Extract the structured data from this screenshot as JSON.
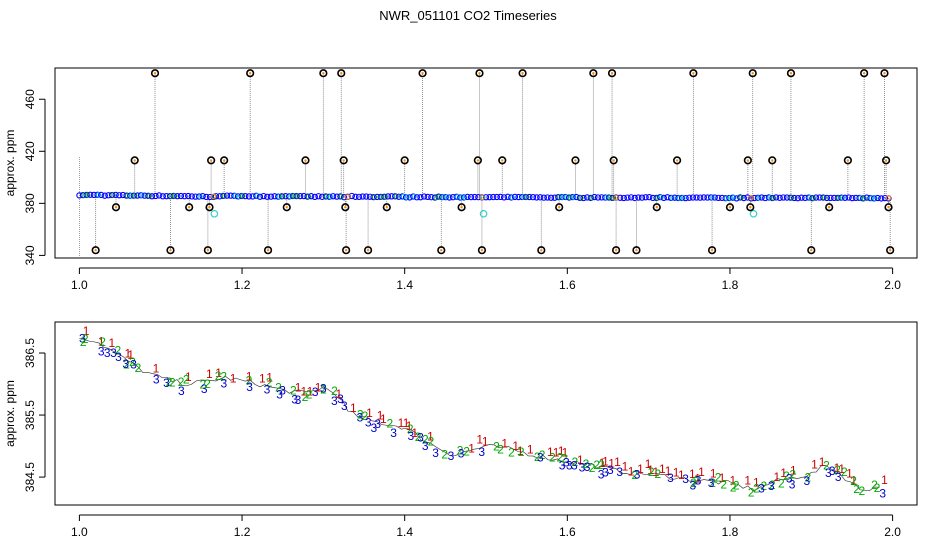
{
  "title": "NWR_051101  CO2 Timeseries",
  "chart_data": [
    {
      "type": "scatter",
      "ylabel": "approx. ppm",
      "xlim": [
        0.97,
        2.03
      ],
      "ylim": [
        338,
        484
      ],
      "xticks": [
        "1.0",
        "1.2",
        "1.4",
        "1.6",
        "1.8",
        "2.0"
      ],
      "xtick_values": [
        1.0,
        1.2,
        1.4,
        1.6,
        1.8,
        2.0
      ],
      "yticks": [
        "340",
        "380",
        "420",
        "460"
      ],
      "ytick_values": [
        340,
        380,
        420,
        460
      ],
      "baseline_series": {
        "name_color": "#0000ff",
        "segments": [
          {
            "x0": 1.0,
            "x1": 1.165,
            "y0": 386.5,
            "y1": 385.2
          },
          {
            "x0": 1.168,
            "x1": 1.33,
            "y0": 385.7,
            "y1": 385.0
          },
          {
            "x0": 1.335,
            "x1": 1.495,
            "y0": 385.3,
            "y1": 384.5
          },
          {
            "x0": 1.5,
            "x1": 1.66,
            "y0": 384.7,
            "y1": 384.4
          },
          {
            "x0": 1.665,
            "x1": 1.826,
            "y0": 384.5,
            "y1": 384.2
          },
          {
            "x0": 1.83,
            "x1": 1.995,
            "y0": 384.3,
            "y1": 384.1
          }
        ]
      },
      "outliers_x": [
        1.02,
        1.045,
        1.068,
        1.093,
        1.112,
        1.135,
        1.158,
        1.16,
        1.162,
        1.178,
        1.21,
        1.232,
        1.255,
        1.278,
        1.3,
        1.322,
        1.325,
        1.327,
        1.328,
        1.355,
        1.378,
        1.4,
        1.422,
        1.445,
        1.47,
        1.49,
        1.492,
        1.495,
        1.52,
        1.545,
        1.568,
        1.59,
        1.61,
        1.632,
        1.655,
        1.657,
        1.66,
        1.685,
        1.71,
        1.735,
        1.755,
        1.778,
        1.8,
        1.822,
        1.825,
        1.828,
        1.852,
        1.875,
        1.9,
        1.922,
        1.945,
        1.965,
        1.99,
        1.992,
        1.995,
        1.997
      ],
      "outliers_y": [
        344,
        377,
        413,
        480,
        344,
        377,
        344,
        377,
        413,
        413,
        480,
        344,
        377,
        413,
        480,
        480,
        413,
        377,
        344,
        344,
        377,
        413,
        480,
        344,
        377,
        413,
        480,
        344,
        413,
        480,
        344,
        377,
        413,
        480,
        480,
        413,
        344,
        344,
        377,
        413,
        480,
        344,
        377,
        413,
        377,
        480,
        413,
        480,
        344,
        377,
        413,
        480,
        480,
        413,
        377,
        344
      ],
      "cyan_points": [
        {
          "x": 1.166,
          "y": 372
        },
        {
          "x": 1.497,
          "y": 372
        },
        {
          "x": 1.829,
          "y": 372
        }
      ]
    },
    {
      "type": "scatter",
      "ylabel": "approx. ppm",
      "xlim": [
        0.97,
        2.03
      ],
      "ylim": [
        384.05,
        387.0
      ],
      "xticks": [
        "1.0",
        "1.2",
        "1.4",
        "1.6",
        "1.8",
        "2.0"
      ],
      "xtick_values": [
        1.0,
        1.2,
        1.4,
        1.6,
        1.8,
        2.0
      ],
      "yticks": [
        "384.5",
        "385.5",
        "386.5"
      ],
      "ytick_values": [
        384.5,
        385.5,
        386.5
      ],
      "marker_labels": [
        "1",
        "2",
        "3"
      ],
      "marker_colors": [
        "#cc0000",
        "#00aa00",
        "#0000cc"
      ],
      "trend_x": [
        1.0,
        1.02,
        1.05,
        1.08,
        1.1,
        1.13,
        1.16,
        1.18,
        1.22,
        1.25,
        1.28,
        1.3,
        1.32,
        1.33,
        1.36,
        1.4,
        1.43,
        1.46,
        1.5,
        1.53,
        1.56,
        1.6,
        1.63,
        1.66,
        1.7,
        1.73,
        1.76,
        1.8,
        1.83,
        1.86,
        1.9,
        1.92,
        1.94,
        1.96,
        1.99
      ],
      "trend_y": [
        386.75,
        386.7,
        386.45,
        386.2,
        386.1,
        386.0,
        386.05,
        386.1,
        386.0,
        385.9,
        385.85,
        385.95,
        385.8,
        385.55,
        385.4,
        385.3,
        385.05,
        384.85,
        385.0,
        384.95,
        384.85,
        384.75,
        384.7,
        384.6,
        384.55,
        384.5,
        384.45,
        384.4,
        384.3,
        384.45,
        384.55,
        384.7,
        384.5,
        384.3,
        384.35
      ]
    }
  ]
}
